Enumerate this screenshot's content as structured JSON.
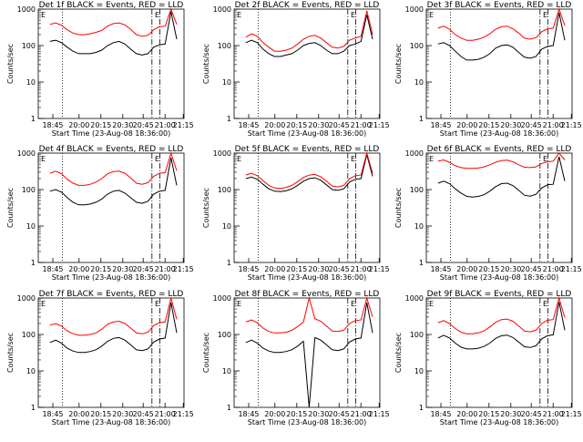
{
  "chart_data": [
    {
      "type": "line",
      "title": "Det 1f BLACK = Events, RED = LLD",
      "xlabel": "Start Time (23-Aug-08 18:36:00)",
      "ylabel": "Counts/sec",
      "yscale": "log",
      "ylim": [
        1,
        1000
      ],
      "yticks": [
        "1",
        "10",
        "100",
        "1000"
      ],
      "xticks": [
        "18:45",
        "20:00",
        "20:15",
        "20:30",
        "20:45",
        "21:00",
        "21:15"
      ],
      "legend_marker": "E",
      "vlines": [
        "dotted",
        "dash-dot",
        "dash-dot"
      ],
      "series": [
        {
          "name": "BLACK = Events",
          "color": "#000000",
          "values": [
            130,
            140,
            120,
            90,
            70,
            60,
            60,
            60,
            65,
            75,
            100,
            120,
            130,
            110,
            80,
            60,
            55,
            60,
            90,
            105,
            110,
            850,
            150
          ]
        },
        {
          "name": "RED = LLD",
          "color": "#ff0000",
          "values": [
            380,
            420,
            360,
            270,
            220,
            200,
            200,
            210,
            230,
            260,
            340,
            400,
            420,
            370,
            280,
            200,
            180,
            190,
            270,
            330,
            340,
            1000,
            380
          ]
        }
      ]
    },
    {
      "type": "line",
      "title": "Det 2f BLACK = Events, RED = LLD",
      "xlabel": "Start Time (23-Aug-08 18:36:00)",
      "ylabel": "Counts/sec",
      "yscale": "log",
      "ylim": [
        1,
        1000
      ],
      "yticks": [
        "1",
        "10",
        "100",
        "1000"
      ],
      "xticks": [
        "18:45",
        "20:00",
        "20:15",
        "20:30",
        "20:45",
        "21:00",
        "21:15"
      ],
      "legend_marker": "E",
      "vlines": [
        "dotted",
        "dash-dot",
        "dash-dot"
      ],
      "series": [
        {
          "name": "BLACK = Events",
          "color": "#000000",
          "values": [
            120,
            140,
            120,
            80,
            60,
            50,
            50,
            55,
            60,
            75,
            100,
            115,
            120,
            100,
            75,
            60,
            60,
            70,
            100,
            110,
            130,
            700,
            150
          ]
        },
        {
          "name": "RED = LLD",
          "color": "#ff0000",
          "values": [
            170,
            210,
            180,
            120,
            90,
            70,
            70,
            75,
            85,
            110,
            150,
            180,
            190,
            160,
            120,
            90,
            85,
            95,
            140,
            160,
            180,
            900,
            200
          ]
        }
      ]
    },
    {
      "type": "line",
      "title": "Det 3f BLACK = Events, RED = LLD",
      "xlabel": "Start Time (23-Aug-08 18:36:00)",
      "ylabel": "Counts/sec",
      "yscale": "log",
      "ylim": [
        1,
        1000
      ],
      "yticks": [
        "1",
        "10",
        "100",
        "1000"
      ],
      "xticks": [
        "18:45",
        "20:00",
        "20:15",
        "20:30",
        "20:45",
        "21:00",
        "21:15"
      ],
      "legend_marker": "E",
      "vlines": [
        "dotted",
        "dash-dot",
        "dash-dot"
      ],
      "series": [
        {
          "name": "BLACK = Events",
          "color": "#000000",
          "values": [
            110,
            120,
            100,
            70,
            50,
            40,
            40,
            42,
            48,
            60,
            85,
            100,
            105,
            90,
            65,
            48,
            45,
            50,
            80,
            95,
            100,
            800,
            140
          ]
        },
        {
          "name": "RED = LLD",
          "color": "#ff0000",
          "values": [
            300,
            340,
            280,
            200,
            160,
            140,
            140,
            150,
            170,
            210,
            280,
            330,
            340,
            290,
            220,
            160,
            150,
            165,
            240,
            290,
            300,
            1000,
            350
          ]
        }
      ]
    },
    {
      "type": "line",
      "title": "Det 4f BLACK = Events, RED = LLD",
      "xlabel": "Start Time (23-Aug-08 18:36:00)",
      "ylabel": "Counts/sec",
      "yscale": "log",
      "ylim": [
        1,
        1000
      ],
      "yticks": [
        "1",
        "10",
        "100",
        "1000"
      ],
      "xticks": [
        "18:45",
        "20:00",
        "20:15",
        "20:30",
        "20:45",
        "21:00",
        "21:15"
      ],
      "legend_marker": "E",
      "vlines": [
        "dotted",
        "dash-dot",
        "dash-dot"
      ],
      "series": [
        {
          "name": "BLACK = Events",
          "color": "#000000",
          "values": [
            90,
            100,
            85,
            60,
            45,
            38,
            38,
            40,
            45,
            55,
            75,
            90,
            95,
            80,
            60,
            45,
            42,
            48,
            75,
            90,
            95,
            750,
            130
          ]
        },
        {
          "name": "RED = LLD",
          "color": "#ff0000",
          "values": [
            280,
            320,
            270,
            190,
            150,
            130,
            130,
            140,
            160,
            200,
            270,
            310,
            320,
            280,
            210,
            150,
            140,
            155,
            230,
            280,
            290,
            1000,
            330
          ]
        }
      ]
    },
    {
      "type": "line",
      "title": "Det 5f BLACK = Events, RED = LLD",
      "xlabel": "Start Time (23-Aug-08 18:36:00)",
      "ylabel": "Counts/sec",
      "yscale": "log",
      "ylim": [
        1,
        1000
      ],
      "yticks": [
        "1",
        "10",
        "100",
        "1000"
      ],
      "xticks": [
        "18:45",
        "20:00",
        "20:15",
        "20:30",
        "20:45",
        "21:00",
        "21:15"
      ],
      "legend_marker": "E",
      "vlines": [
        "dotted",
        "dash-dot",
        "dash-dot"
      ],
      "series": [
        {
          "name": "BLACK = Events",
          "color": "#000000",
          "values": [
            200,
            220,
            190,
            140,
            105,
            90,
            88,
            92,
            105,
            130,
            170,
            200,
            210,
            180,
            135,
            100,
            95,
            105,
            160,
            190,
            200,
            900,
            230
          ]
        },
        {
          "name": "RED = LLD",
          "color": "#ff0000",
          "values": [
            250,
            280,
            240,
            175,
            130,
            110,
            108,
            115,
            130,
            165,
            215,
            250,
            260,
            225,
            170,
            125,
            118,
            130,
            200,
            240,
            250,
            1000,
            280
          ]
        }
      ]
    },
    {
      "type": "line",
      "title": "Det 6f BLACK = Events, RED = LLD",
      "xlabel": "Start Time (23-Aug-08 18:36:00)",
      "ylabel": "Counts/sec",
      "yscale": "log",
      "ylim": [
        1,
        1000
      ],
      "yticks": [
        "1",
        "10",
        "100",
        "1000"
      ],
      "xticks": [
        "18:45",
        "20:00",
        "20:15",
        "20:30",
        "20:45",
        "21:00",
        "21:15"
      ],
      "legend_marker": "E",
      "vlines": [
        "dotted",
        "dash-dot",
        "dash-dot"
      ],
      "series": [
        {
          "name": "BLACK = Events",
          "color": "#000000",
          "values": [
            150,
            170,
            145,
            105,
            80,
            65,
            62,
            65,
            72,
            90,
            120,
            145,
            150,
            128,
            96,
            70,
            66,
            74,
            110,
            135,
            140,
            800,
            170
          ]
        },
        {
          "name": "RED = LLD",
          "color": "#ff0000",
          "values": [
            600,
            650,
            560,
            450,
            400,
            380,
            380,
            390,
            420,
            480,
            560,
            620,
            640,
            580,
            480,
            410,
            400,
            420,
            520,
            580,
            600,
            1000,
            650
          ]
        }
      ]
    },
    {
      "type": "line",
      "title": "Det 7f BLACK = Events, RED = LLD",
      "xlabel": "Start Time (23-Aug-08 18:36:00)",
      "ylabel": "Counts/sec",
      "yscale": "log",
      "ylim": [
        1,
        1000
      ],
      "yticks": [
        "1",
        "10",
        "100",
        "1000"
      ],
      "xticks": [
        "18:45",
        "20:00",
        "20:15",
        "20:30",
        "20:45",
        "21:00",
        "21:15"
      ],
      "legend_marker": "E",
      "vlines": [
        "dotted",
        "dash-dot",
        "dash-dot"
      ],
      "series": [
        {
          "name": "BLACK = Events",
          "color": "#000000",
          "values": [
            60,
            70,
            58,
            42,
            35,
            32,
            32,
            34,
            38,
            48,
            65,
            78,
            82,
            70,
            52,
            38,
            36,
            40,
            62,
            75,
            80,
            750,
            110
          ]
        },
        {
          "name": "RED = LLD",
          "color": "#ff0000",
          "values": [
            180,
            200,
            170,
            125,
            105,
            95,
            95,
            100,
            110,
            140,
            190,
            220,
            230,
            200,
            150,
            110,
            105,
            115,
            175,
            210,
            220,
            1000,
            260
          ]
        }
      ]
    },
    {
      "type": "line",
      "title": "Det 8f BLACK = Events, RED = LLD",
      "xlabel": "Start Time (23-Aug-08 18:36:00)",
      "ylabel": "Counts/sec",
      "yscale": "log",
      "ylim": [
        1,
        1000
      ],
      "yticks": [
        "1",
        "10",
        "100",
        "1000"
      ],
      "xticks": [
        "18:45",
        "20:00",
        "20:15",
        "20:30",
        "20:45",
        "21:00",
        "21:15"
      ],
      "legend_marker": "E",
      "vlines": [
        "dotted",
        "dash-dot",
        "dash-dot"
      ],
      "series": [
        {
          "name": "BLACK = Events",
          "color": "#000000",
          "values": [
            60,
            70,
            58,
            42,
            35,
            32,
            32,
            34,
            38,
            48,
            65,
            1,
            82,
            70,
            52,
            38,
            36,
            40,
            62,
            75,
            80,
            750,
            110
          ]
        },
        {
          "name": "RED = LLD",
          "color": "#ff0000",
          "values": [
            220,
            250,
            210,
            150,
            120,
            110,
            110,
            115,
            130,
            165,
            220,
            1000,
            270,
            230,
            170,
            125,
            120,
            130,
            200,
            240,
            250,
            1000,
            300
          ]
        }
      ]
    },
    {
      "type": "line",
      "title": "Det 9f BLACK = Events, RED = LLD",
      "xlabel": "Start Time (23-Aug-08 18:36:00)",
      "ylabel": "Counts/sec",
      "yscale": "log",
      "ylim": [
        1,
        1000
      ],
      "yticks": [
        "1",
        "10",
        "100",
        "1000"
      ],
      "xticks": [
        "18:45",
        "20:00",
        "20:15",
        "20:30",
        "20:45",
        "21:00",
        "21:15"
      ],
      "legend_marker": "E",
      "vlines": [
        "dotted",
        "dash-dot",
        "dash-dot"
      ],
      "series": [
        {
          "name": "BLACK = Events",
          "color": "#000000",
          "values": [
            80,
            95,
            80,
            58,
            45,
            40,
            40,
            42,
            47,
            58,
            78,
            92,
            96,
            82,
            62,
            46,
            44,
            49,
            76,
            92,
            98,
            780,
            130
          ]
        },
        {
          "name": "RED = LLD",
          "color": "#ff0000",
          "values": [
            210,
            240,
            200,
            145,
            115,
            105,
            105,
            110,
            125,
            160,
            215,
            255,
            265,
            230,
            170,
            125,
            118,
            130,
            200,
            245,
            255,
            1000,
            290
          ]
        }
      ]
    }
  ]
}
